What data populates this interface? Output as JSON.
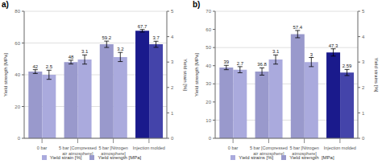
{
  "chart_data": [
    {
      "type": "bar",
      "title": "a)",
      "categories": [
        "0 bar",
        "5 bar [Compressed\nair atmosphere]",
        "5 bar [Nitrogen\natmosphere]",
        "Injection molded"
      ],
      "series": [
        {
          "name": "Yield strength [MPa]",
          "color": "#9999cc",
          "colors": [
            "#9999cc",
            "#9999cc",
            "#9999cc",
            "#1a1a8c"
          ],
          "values": [
            42,
            48,
            59.2,
            67.7
          ],
          "errors": [
            1.2,
            1.2,
            2.0,
            0.8
          ]
        },
        {
          "name": "Yield strain [%]",
          "axis": "y2",
          "color": "#aaaadd",
          "colors": [
            "#aaaadd",
            "#aaaadd",
            "#aaaadd",
            "#4444aa"
          ],
          "values": [
            2.5,
            3.1,
            3.2,
            3.7
          ],
          "errors": [
            0.18,
            0.18,
            0.18,
            0.12
          ]
        }
      ],
      "ylabel": "Yield strength [MPa]",
      "y2label": "Yield strain [%]",
      "ylim": [
        0,
        80
      ],
      "yticks": [
        0,
        20,
        40,
        60,
        80
      ],
      "y2lim": [
        0,
        5
      ],
      "y2ticks": [
        0,
        1,
        2,
        3,
        4,
        5
      ],
      "grid": true,
      "legend": "bottom",
      "data_labels": true
    },
    {
      "type": "bar",
      "title": "b)",
      "categories": [
        "0 bar",
        "5 bar [Compressed\nair atmosphere]",
        "5 bar [Nitrogen\natmosphere]",
        "Injection molded"
      ],
      "series": [
        {
          "name": "Yield strength  [MPa]",
          "color": "#9999cc",
          "colors": [
            "#9999cc",
            "#9999cc",
            "#9999cc",
            "#1a1a8c"
          ],
          "values": [
            39,
            36.8,
            57.4,
            47.3
          ],
          "errors": [
            1.2,
            2.0,
            2.0,
            2.0
          ]
        },
        {
          "name": "Yield strains [%]",
          "axis": "y2",
          "color": "#aaaadd",
          "colors": [
            "#aaaadd",
            "#aaaadd",
            "#aaaadd",
            "#4444aa"
          ],
          "values": [
            2.7,
            3.1,
            3.0,
            2.59
          ],
          "errors": [
            0.12,
            0.18,
            0.18,
            0.12
          ]
        }
      ],
      "ylabel": "Yield strength [MPa]",
      "y2label": "Yield strains [%]",
      "ylim": [
        0,
        70
      ],
      "yticks": [
        0,
        10,
        20,
        30,
        40,
        50,
        60,
        70
      ],
      "y2lim": [
        0,
        5
      ],
      "y2ticks": [
        0,
        1,
        2,
        3,
        4,
        5
      ],
      "grid": true,
      "legend": "bottom",
      "data_labels": true
    }
  ]
}
